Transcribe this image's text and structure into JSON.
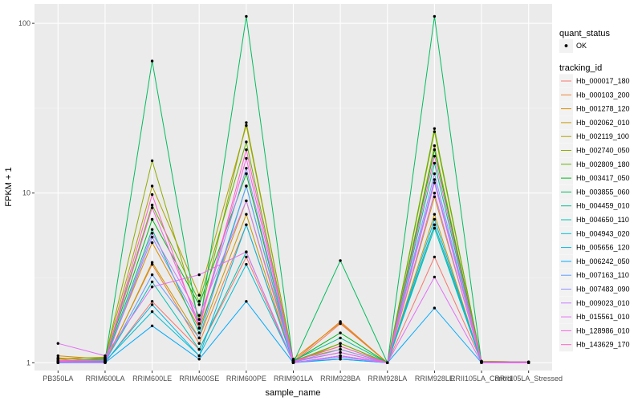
{
  "chart_data": {
    "type": "line",
    "xlabel": "sample_name",
    "ylabel": "FPKM + 1",
    "y_scale": "log10",
    "ylim": [
      0.9,
      130
    ],
    "y_ticks": [
      {
        "value": 1,
        "label": "1"
      },
      {
        "value": 10,
        "label": "10"
      },
      {
        "value": 100,
        "label": "100"
      }
    ],
    "grid": true,
    "legend_position": "right",
    "categories": [
      "PB350LA",
      "RRIM600LA",
      "RRIM600LE",
      "RRIM600SE",
      "RRIM600PE",
      "RRIM901LA",
      "RRIM928BA",
      "RRIM928LA",
      "RRIM928LE",
      "RRII105LA_Control",
      "RRII105LA_Stressed"
    ],
    "shape_legend": {
      "title": "quant_status",
      "items": [
        {
          "label": "OK",
          "shape": "point"
        }
      ]
    },
    "color_legend_title": "tracking_id",
    "series": [
      {
        "name": "Hb_000017_180",
        "color": "#F8766D",
        "values": [
          1.05,
          1.0,
          2.3,
          1.2,
          4.2,
          1.0,
          1.7,
          1.0,
          4.2,
          1.02,
          1.0
        ]
      },
      {
        "name": "Hb_000103_200",
        "color": "#EC8239",
        "values": [
          1.07,
          1.02,
          3.8,
          1.3,
          6.5,
          1.02,
          1.75,
          1.0,
          6.5,
          1.02,
          1.0
        ]
      },
      {
        "name": "Hb_001278_120",
        "color": "#DB8E00",
        "values": [
          1.1,
          1.05,
          5.1,
          1.6,
          9.0,
          1.05,
          1.72,
          1.0,
          9.5,
          1.02,
          1.01
        ]
      },
      {
        "name": "Hb_002062_010",
        "color": "#C79800",
        "values": [
          1.0,
          1.0,
          3.9,
          1.4,
          7.5,
          1.0,
          1.3,
          1.0,
          7.5,
          1.0,
          1.0
        ]
      },
      {
        "name": "Hb_002119_100",
        "color": "#AEA200",
        "values": [
          1.05,
          1.08,
          11.0,
          2.5,
          25.0,
          1.04,
          1.2,
          1.0,
          19.0,
          1.02,
          1.01
        ]
      },
      {
        "name": "Hb_002740_050",
        "color": "#8FAA00",
        "values": [
          1.06,
          1.07,
          15.5,
          1.8,
          26.0,
          1.03,
          1.25,
          1.0,
          23.0,
          1.02,
          1.01
        ]
      },
      {
        "name": "Hb_002809_180",
        "color": "#64B200",
        "values": [
          1.02,
          1.06,
          8.5,
          2.3,
          20.0,
          1.02,
          1.3,
          1.0,
          24.0,
          1.01,
          1.01
        ]
      },
      {
        "name": "Hb_003417_050",
        "color": "#00B81B",
        "values": [
          1.02,
          1.05,
          7.0,
          2.2,
          13.0,
          1.02,
          1.5,
          1.0,
          18.0,
          1.01,
          1.01
        ]
      },
      {
        "name": "Hb_003855_060",
        "color": "#00BD5C",
        "values": [
          1.0,
          1.04,
          60.0,
          1.6,
          110.0,
          1.0,
          4.0,
          1.0,
          110.0,
          1.01,
          1.0
        ]
      },
      {
        "name": "Hb_004459_010",
        "color": "#00C08E",
        "values": [
          1.01,
          1.03,
          6.1,
          1.5,
          11.0,
          1.03,
          1.4,
          1.0,
          15.0,
          1.01,
          1.01
        ]
      },
      {
        "name": "Hb_004650_110",
        "color": "#00C1B2",
        "values": [
          1.0,
          1.02,
          3.0,
          1.2,
          4.5,
          1.0,
          1.1,
          1.0,
          6.2,
          1.0,
          1.0
        ]
      },
      {
        "name": "Hb_004943_020",
        "color": "#00BED1",
        "values": [
          1.0,
          1.02,
          2.0,
          1.1,
          3.8,
          1.01,
          1.05,
          1.0,
          6.5,
          1.0,
          1.0
        ]
      },
      {
        "name": "Hb_005656_120",
        "color": "#00B8E7",
        "values": [
          1.0,
          1.01,
          2.2,
          1.1,
          6.5,
          1.0,
          1.1,
          1.0,
          7.0,
          1.0,
          1.0
        ]
      },
      {
        "name": "Hb_006242_050",
        "color": "#00ABFD",
        "values": [
          1.0,
          1.0,
          1.65,
          1.05,
          2.3,
          1.0,
          1.05,
          1.0,
          2.1,
          1.0,
          1.0
        ]
      },
      {
        "name": "Hb_007163_110",
        "color": "#619CFF",
        "values": [
          1.01,
          1.01,
          3.3,
          1.4,
          11.0,
          1.01,
          1.15,
          1.0,
          12.0,
          1.01,
          1.01
        ]
      },
      {
        "name": "Hb_007483_090",
        "color": "#8F91FF",
        "values": [
          1.0,
          1.01,
          5.5,
          1.7,
          14.0,
          1.01,
          1.2,
          1.0,
          13.0,
          1.01,
          1.0
        ]
      },
      {
        "name": "Hb_009023_010",
        "color": "#C77CFF",
        "values": [
          1.0,
          1.0,
          5.8,
          1.9,
          9.0,
          1.0,
          1.08,
          1.0,
          10.0,
          1.0,
          1.0
        ]
      },
      {
        "name": "Hb_015561_010",
        "color": "#E46EF5",
        "values": [
          1.3,
          1.1,
          2.8,
          3.3,
          4.5,
          1.0,
          1.1,
          1.0,
          3.2,
          1.0,
          1.0
        ]
      },
      {
        "name": "Hb_128986_010",
        "color": "#F564E3",
        "values": [
          1.03,
          1.04,
          8.2,
          1.7,
          16.0,
          1.02,
          1.15,
          1.0,
          11.5,
          1.01,
          1.01
        ]
      },
      {
        "name": "Hb_143629_170",
        "color": "#FF61C4",
        "values": [
          1.02,
          1.03,
          9.8,
          1.6,
          18.0,
          1.02,
          1.25,
          1.0,
          16.5,
          1.01,
          1.01
        ]
      }
    ]
  }
}
